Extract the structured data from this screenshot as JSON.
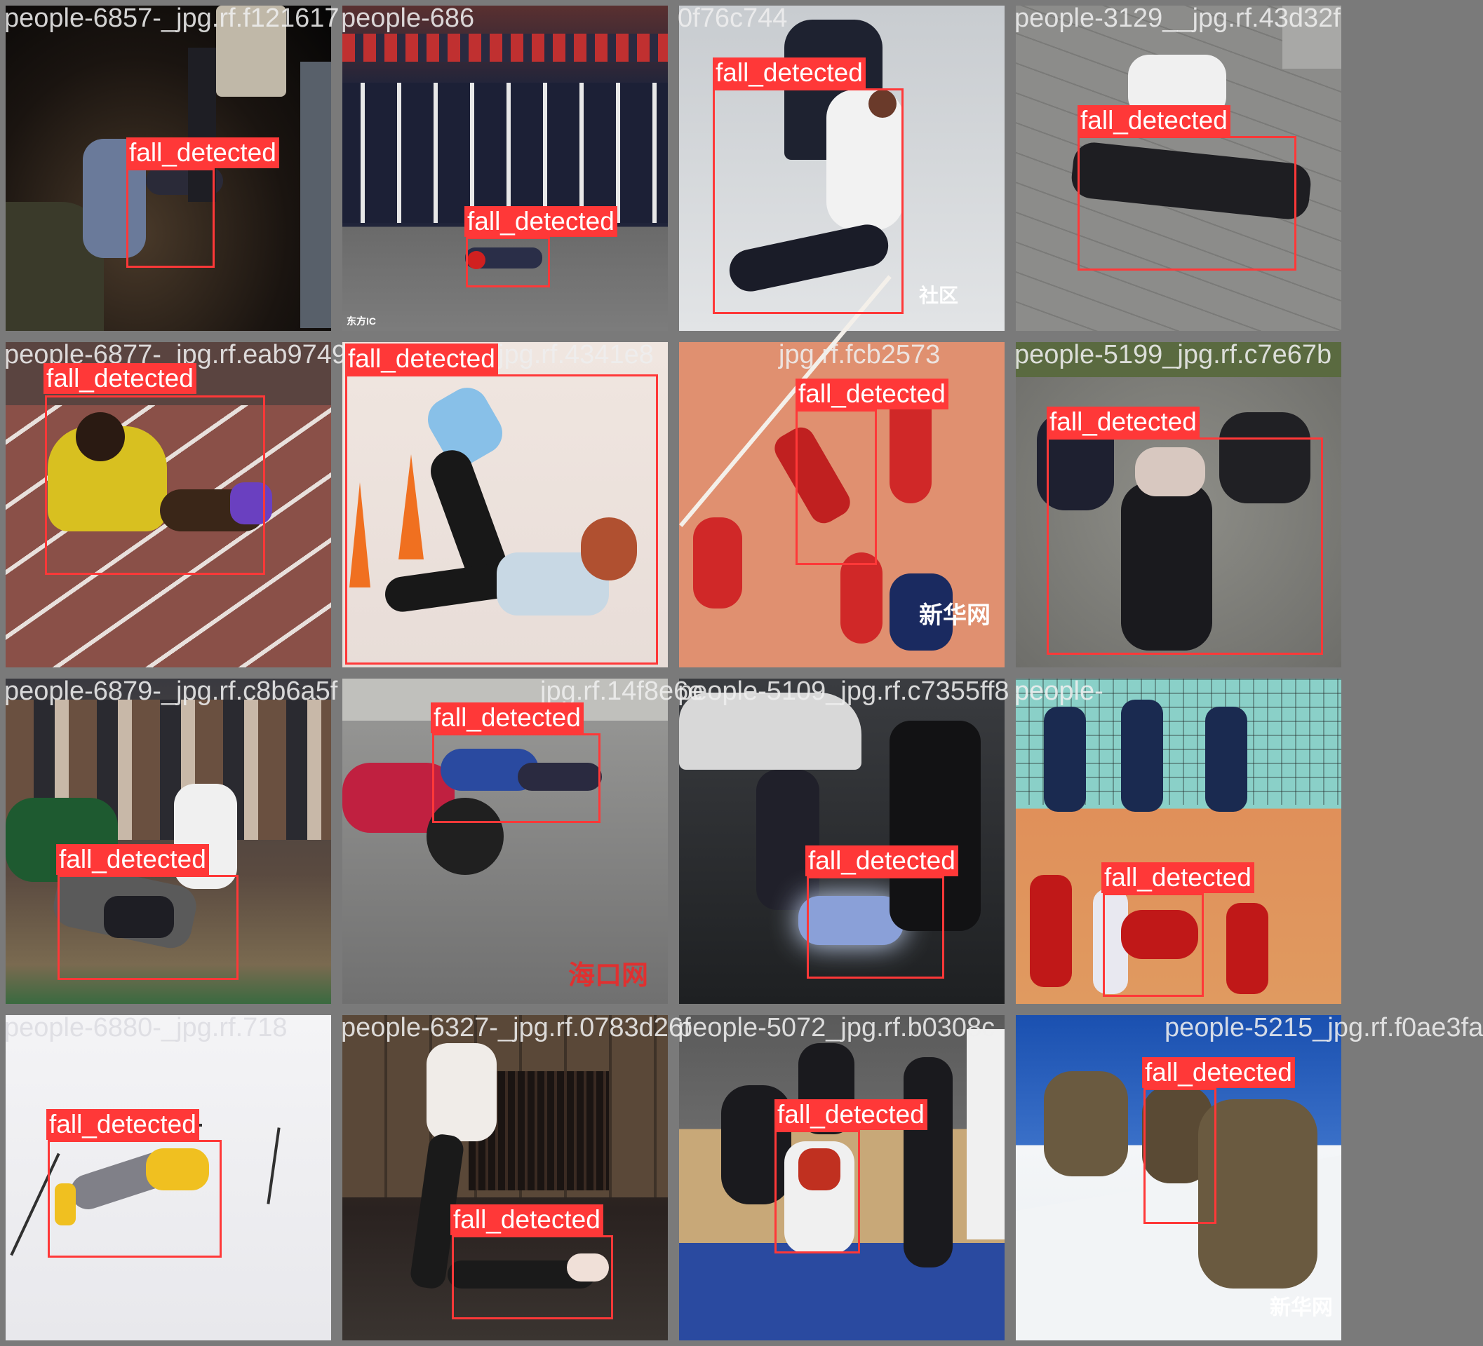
{
  "colors": {
    "box": "#ff3838",
    "label_text": "#ffffff",
    "grid_bg": "#7a7a7a"
  },
  "tiles": [
    {
      "filename": "people-6857-_jpg.rf.f121617",
      "label": "fall_detected",
      "watermark": ""
    },
    {
      "filename": "people-686",
      "label": "fall_detected",
      "watermark": "东方IC"
    },
    {
      "filename": "0f76c744",
      "label": "fall_detected",
      "watermark": "社区"
    },
    {
      "filename": "people-3129__jpg.rf.43d32f",
      "label": "fall_detected",
      "watermark": ""
    },
    {
      "filename": "people-6877-_jpg.rf.eab9749",
      "label": "fall_detected",
      "watermark": ""
    },
    {
      "filename": "jpg.rf.4341e8",
      "label": "fall_detected",
      "watermark": ""
    },
    {
      "filename": "jpg.rf.fcb2573",
      "label": "fall_detected",
      "watermark": "新华网"
    },
    {
      "filename": "people-5199_jpg.rf.c7e67b",
      "label": "fall_detected",
      "watermark": ""
    },
    {
      "filename": "people-6879-_jpg.rf.c8b6a5f",
      "label": "fall_detected",
      "watermark": ""
    },
    {
      "filename": "jpg.rf.14f8e6e",
      "label": "fall_detected",
      "watermark": "海口网"
    },
    {
      "filename": "people-5109_jpg.rf.c7355ff8",
      "label": "fall_detected",
      "watermark": ""
    },
    {
      "filename": "people-",
      "label": "fall_detected",
      "watermark": ""
    },
    {
      "filename": "people-6880-_jpg.rf.718",
      "label": "fall_detected",
      "watermark": ""
    },
    {
      "filename": "people-6327-_jpg.rf.0783d26f",
      "label": "fall_detected",
      "watermark": ""
    },
    {
      "filename": "people-5072_jpg.rf.b0308c",
      "label": "fall_detected",
      "watermark": ""
    },
    {
      "filename": "people-5215_jpg.rf.f0ae3fa",
      "label": "fall_detected",
      "watermark": "新华网"
    }
  ]
}
